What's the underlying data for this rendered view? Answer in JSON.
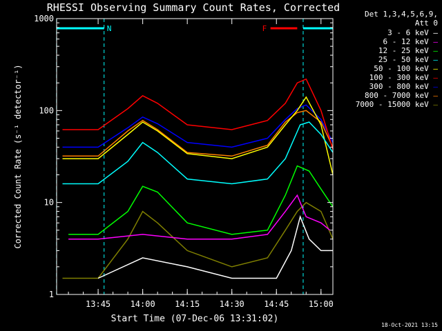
{
  "chart_data": {
    "type": "line",
    "title": "RHESSI Observing Summary Count Rates, Corrected",
    "xlabel": "Start Time (07-Dec-06 13:31:02)",
    "ylabel": "Corrected Count Rate (s⁻¹ detector⁻¹)",
    "x_ticks": [
      "13:45",
      "14:00",
      "14:15",
      "14:30",
      "14:45",
      "15:00"
    ],
    "y_ticks": [
      "1",
      "10",
      "100",
      "1000"
    ],
    "y_scale": "log",
    "ylim": [
      1,
      1000
    ],
    "xlim": [
      "13:31:02",
      "15:04"
    ],
    "legend_header": [
      "Det 1,3,4,5,6,9,",
      "Att 0"
    ],
    "flags": [
      {
        "label": "N",
        "start": "13:31",
        "end": "13:47",
        "color": "#00ffff"
      },
      {
        "label": "F",
        "start": "14:43",
        "end": "14:52",
        "color": "#ff0000"
      },
      {
        "label": "",
        "start": "14:54",
        "end": "15:04",
        "color": "#00ffff"
      }
    ],
    "series": [
      {
        "name": "3 - 6 keV",
        "color": "#ffffff",
        "x": [
          "13:45",
          "14:00",
          "14:15",
          "14:30",
          "14:45",
          "14:50",
          "14:53",
          "14:56",
          "15:00",
          "15:04"
        ],
        "y": [
          1.5,
          2.5,
          2,
          1.5,
          1.5,
          3,
          7,
          4,
          3,
          3
        ]
      },
      {
        "name": "6 - 12 keV",
        "color": "#ff00ff",
        "x": [
          "13:35",
          "13:45",
          "14:00",
          "14:15",
          "14:30",
          "14:42",
          "14:48",
          "14:52",
          "14:55",
          "15:00",
          "15:03"
        ],
        "y": [
          4,
          4,
          4.5,
          4,
          4,
          4.5,
          8,
          12,
          7,
          6,
          5
        ]
      },
      {
        "name": "12 - 25 keV",
        "color": "#00ff00",
        "x": [
          "13:35",
          "13:45",
          "13:55",
          "14:00",
          "14:05",
          "14:15",
          "14:30",
          "14:42",
          "14:48",
          "14:52",
          "14:56",
          "15:00",
          "15:04"
        ],
        "y": [
          4.5,
          4.5,
          8,
          15,
          13,
          6,
          4.5,
          5,
          12,
          25,
          22,
          14,
          9
        ]
      },
      {
        "name": "25 - 50 keV",
        "color": "#00ffff",
        "x": [
          "13:33",
          "13:45",
          "13:55",
          "14:00",
          "14:05",
          "14:15",
          "14:30",
          "14:42",
          "14:48",
          "14:53",
          "14:56",
          "15:00",
          "15:04"
        ],
        "y": [
          16,
          16,
          28,
          45,
          35,
          18,
          16,
          18,
          30,
          70,
          75,
          55,
          35
        ]
      },
      {
        "name": "50 - 100 keV",
        "color": "#ffff00",
        "x": [
          "13:33",
          "13:45",
          "13:55",
          "14:00",
          "14:05",
          "14:15",
          "14:30",
          "14:42",
          "14:48",
          "14:52",
          "14:55",
          "15:00",
          "15:04"
        ],
        "y": [
          30,
          30,
          55,
          75,
          60,
          34,
          30,
          40,
          70,
          100,
          140,
          70,
          20
        ]
      },
      {
        "name": "100 - 300 keV",
        "color": "#ff0000",
        "x": [
          "13:33",
          "13:45",
          "13:55",
          "14:00",
          "14:05",
          "14:15",
          "14:30",
          "14:42",
          "14:48",
          "14:52",
          "14:55",
          "15:00",
          "15:04"
        ],
        "y": [
          62,
          62,
          105,
          145,
          120,
          70,
          62,
          78,
          120,
          200,
          220,
          100,
          38
        ]
      },
      {
        "name": "300 - 800 keV",
        "color": "#0000ff",
        "x": [
          "13:33",
          "13:45",
          "13:55",
          "14:00",
          "14:05",
          "14:15",
          "14:30",
          "14:42",
          "14:48",
          "14:52",
          "14:55",
          "15:00",
          "15:04"
        ],
        "y": [
          40,
          40,
          65,
          85,
          72,
          45,
          40,
          50,
          80,
          105,
          115,
          80,
          45
        ]
      },
      {
        "name": "800 - 7000 keV",
        "color": "#ff8000",
        "x": [
          "13:33",
          "13:45",
          "13:55",
          "14:00",
          "14:05",
          "14:15",
          "14:30",
          "14:42",
          "14:48",
          "14:52",
          "14:55",
          "15:00",
          "15:04"
        ],
        "y": [
          32,
          32,
          60,
          78,
          62,
          35,
          32,
          42,
          75,
          95,
          100,
          75,
          40
        ]
      },
      {
        "name": "7000 - 15000 keV",
        "color": "#808000",
        "x": [
          "13:33",
          "13:45",
          "13:55",
          "14:00",
          "14:05",
          "14:15",
          "14:30",
          "14:42",
          "14:48",
          "14:52",
          "14:55",
          "15:00",
          "15:04"
        ],
        "y": [
          1.5,
          1.5,
          4,
          8,
          6,
          3,
          2,
          2.5,
          5,
          8,
          10,
          8,
          4
        ]
      }
    ],
    "footer_timestamp": "18-Oct-2021 13:15"
  }
}
